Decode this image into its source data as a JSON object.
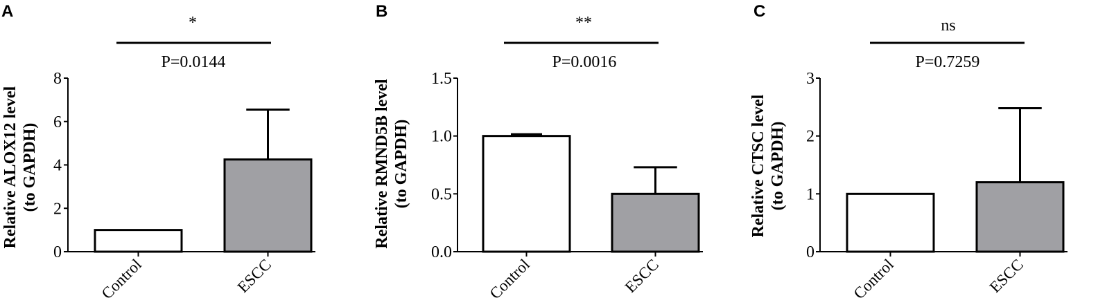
{
  "chart_data": [
    {
      "type": "bar",
      "panel": "A",
      "categories": [
        "Control",
        "ESCC"
      ],
      "values": [
        1.0,
        4.25
      ],
      "error_upper": [
        0.0,
        2.3
      ],
      "bar_colors": [
        "#ffffff",
        "#a0a0a4"
      ],
      "ylim": [
        0,
        8
      ],
      "yticks": [
        "0",
        "2",
        "4",
        "6",
        "8"
      ],
      "ylabel_line1": "Relative ALOX12 level",
      "ylabel_line2": "(to GAPDH)",
      "significance": "*",
      "p_value": "P=0.0144"
    },
    {
      "type": "bar",
      "panel": "B",
      "categories": [
        "Control",
        "ESCC"
      ],
      "values": [
        1.0,
        0.5
      ],
      "error_upper": [
        0.015,
        0.23
      ],
      "bar_colors": [
        "#ffffff",
        "#a0a0a4"
      ],
      "ylim": [
        0,
        1.5
      ],
      "yticks": [
        "0.0",
        "0.5",
        "1.0",
        "1.5"
      ],
      "ylabel_line1": "Relative RMND5B level",
      "ylabel_line2": "(to GAPDH)",
      "significance": "**",
      "p_value": "P=0.0016"
    },
    {
      "type": "bar",
      "panel": "C",
      "categories": [
        "Control",
        "ESCC"
      ],
      "values": [
        1.0,
        1.2
      ],
      "error_upper": [
        0.0,
        1.28
      ],
      "bar_colors": [
        "#ffffff",
        "#a0a0a4"
      ],
      "ylim": [
        0,
        3
      ],
      "yticks": [
        "0",
        "1",
        "2",
        "3"
      ],
      "ylabel_line1": "Relative CTSC level",
      "ylabel_line2": "(to GAPDH)",
      "significance": "ns",
      "p_value": "P=0.7259"
    }
  ]
}
